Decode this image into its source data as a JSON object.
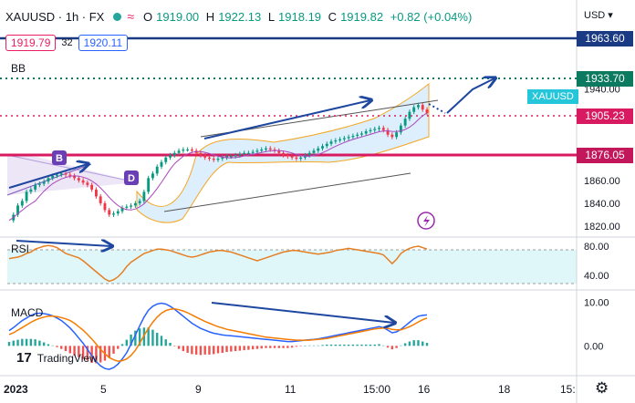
{
  "header": {
    "symbol": "XAUUSD · 1h · FX",
    "wave_icon": "≈",
    "ohlc": {
      "o_label": "O",
      "o": "1919.00",
      "h_label": "H",
      "h": "1922.13",
      "l_label": "L",
      "l": "1918.19",
      "c_label": "C",
      "c": "1919.82",
      "change": "+0.82 (+0.04%)"
    }
  },
  "bid": "1919.79",
  "spread": "32",
  "ask": "1920.11",
  "bb_label": "BB",
  "rsi_label": "RSI",
  "macd_label": "MACD",
  "currency": "USD",
  "logo": {
    "mark": "17",
    "name": "TradingView"
  },
  "price_tags": {
    "navy": {
      "text": "1963.60",
      "color": "#1b3a84"
    },
    "green": {
      "text": "1933.70",
      "color": "#0b7a5e"
    },
    "pink": {
      "text": "1905.23",
      "color": "#d81b60"
    },
    "red": {
      "text": "1876.05",
      "color": "#c2185b"
    }
  },
  "symbol_tag": "XAUUSD",
  "badges": {
    "b": "B",
    "d": "D"
  },
  "chart_data": {
    "type": "line",
    "title": "XAUUSD · 1h · FX",
    "xlabel": "",
    "ylabel": "",
    "x_ticks": [
      "2023",
      "5",
      "9",
      "11",
      "15:00",
      "16",
      "18",
      "15:"
    ],
    "price_axis": {
      "ticks": [
        1940.0,
        1920.0,
        1880.0,
        1860.0,
        1840.0,
        1820.0
      ],
      "ylim": [
        1812,
        1970
      ]
    },
    "rsi_axis": {
      "ticks": [
        80.0,
        40.0
      ],
      "ylim": [
        20,
        90
      ]
    },
    "macd_axis": {
      "ticks": [
        10.0,
        0.0
      ],
      "ylim": [
        -6,
        12
      ]
    },
    "levels": [
      {
        "name": "resistance",
        "value": 1963.6,
        "color": "#1b3a84",
        "style": "solid"
      },
      {
        "name": "target",
        "value": 1933.7,
        "color": "#0b7a5e",
        "style": "dotted"
      },
      {
        "name": "support-1",
        "value": 1905.23,
        "color": "#d81b60",
        "style": "dotted"
      },
      {
        "name": "support-2",
        "value": 1876.05,
        "color": "#d81b60",
        "style": "solid"
      }
    ],
    "series": [
      {
        "name": "price",
        "values": [
          1825,
          1830,
          1838,
          1842,
          1850,
          1852,
          1856,
          1857,
          1859,
          1862,
          1864,
          1865,
          1866,
          1865,
          1864,
          1862,
          1860,
          1858,
          1856,
          1852,
          1846,
          1840,
          1834,
          1830,
          1831,
          1833,
          1836,
          1837,
          1838,
          1840,
          1842,
          1850,
          1862,
          1866,
          1872,
          1876,
          1880,
          1882,
          1884,
          1886,
          1887,
          1887,
          1886,
          1884,
          1882,
          1880,
          1879,
          1878,
          1879,
          1880,
          1881,
          1881,
          1882,
          1883,
          1884,
          1884,
          1885,
          1886,
          1887,
          1888,
          1887,
          1886,
          1884,
          1882,
          1881,
          1880,
          1879,
          1880,
          1882,
          1884,
          1886,
          1888,
          1890,
          1892,
          1894,
          1895,
          1896,
          1897,
          1898,
          1899,
          1900,
          1901,
          1903,
          1904,
          1905,
          1906,
          1904,
          1900,
          1898,
          1902,
          1908,
          1914,
          1920,
          1924,
          1926,
          1922,
          1919
        ]
      },
      {
        "name": "rsi",
        "values": [
          63,
          64,
          65,
          67,
          70,
          72,
          76,
          78,
          80,
          81,
          80,
          78,
          74,
          70,
          68,
          66,
          64,
          60,
          55,
          50,
          45,
          40,
          35,
          32,
          34,
          38,
          44,
          52,
          58,
          62,
          66,
          70,
          72,
          74,
          76,
          76,
          75,
          74,
          72,
          70,
          68,
          66,
          65,
          66,
          68,
          70,
          72,
          73,
          74,
          74,
          73,
          72,
          70,
          68,
          66,
          64,
          62,
          60,
          62,
          64,
          66,
          68,
          70,
          72,
          73,
          74,
          74,
          73,
          72,
          71,
          70,
          69,
          70,
          71,
          72,
          74,
          75,
          76,
          77,
          76,
          75,
          74,
          73,
          72,
          71,
          70,
          68,
          62,
          56,
          62,
          70,
          74,
          77,
          79,
          80,
          78,
          76
        ]
      },
      {
        "name": "macd",
        "values": [
          3.5,
          4.2,
          5.0,
          5.8,
          6.4,
          7.0,
          7.4,
          7.5,
          7.4,
          7.2,
          6.9,
          6.4,
          5.8,
          5.0,
          4.1,
          3.0,
          1.8,
          0.6,
          -0.8,
          -2.3,
          -3.6,
          -4.6,
          -5.2,
          -5.4,
          -5.0,
          -4.2,
          -3.0,
          -1.6,
          0.4,
          2.5,
          4.6,
          6.6,
          8.2,
          9.1,
          9.6,
          9.8,
          9.6,
          9.1,
          8.4,
          7.6,
          6.8,
          6.0,
          5.2,
          4.6,
          4.0,
          3.6,
          3.2,
          2.9,
          2.7,
          2.5,
          2.4,
          2.3,
          2.2,
          2.1,
          2.0,
          1.9,
          1.8,
          1.7,
          1.6,
          1.5,
          1.4,
          1.3,
          1.2,
          1.1,
          1.0,
          1.0,
          1.1,
          1.2,
          1.3,
          1.4,
          1.5,
          1.6,
          1.8,
          2.0,
          2.2,
          2.4,
          2.6,
          2.8,
          3.0,
          3.2,
          3.4,
          3.6,
          3.8,
          4.0,
          4.2,
          4.4,
          4.2,
          3.6,
          3.0,
          3.2,
          3.8,
          4.6,
          5.4,
          6.2,
          6.8,
          7.0,
          7.1
        ]
      },
      {
        "name": "signal",
        "values": [
          2.6,
          3.0,
          3.6,
          4.2,
          4.8,
          5.4,
          5.9,
          6.3,
          6.6,
          6.8,
          6.8,
          6.7,
          6.5,
          6.2,
          5.8,
          5.2,
          4.4,
          3.6,
          2.6,
          1.6,
          0.4,
          -0.8,
          -1.8,
          -2.7,
          -3.2,
          -3.5,
          -3.4,
          -3.0,
          -2.2,
          -1.0,
          0.6,
          2.4,
          4.0,
          5.4,
          6.6,
          7.5,
          8.1,
          8.4,
          8.5,
          8.3,
          8.0,
          7.6,
          7.1,
          6.6,
          6.1,
          5.6,
          5.2,
          4.8,
          4.4,
          4.1,
          3.8,
          3.6,
          3.4,
          3.2,
          3.0,
          2.8,
          2.6,
          2.4,
          2.2,
          2.0,
          1.9,
          1.8,
          1.7,
          1.6,
          1.5,
          1.4,
          1.3,
          1.3,
          1.3,
          1.3,
          1.4,
          1.5,
          1.6,
          1.7,
          1.9,
          2.1,
          2.3,
          2.5,
          2.7,
          2.9,
          3.1,
          3.3,
          3.5,
          3.7,
          3.9,
          4.0,
          4.1,
          4.0,
          3.8,
          3.7,
          3.7,
          4.0,
          4.4,
          4.9,
          5.5,
          6.0,
          6.4
        ]
      }
    ]
  }
}
